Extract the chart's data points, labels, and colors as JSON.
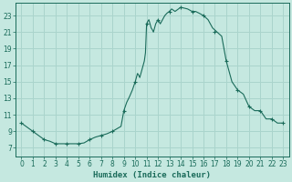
{
  "xlabel": "Humidex (Indice chaleur)",
  "bg_color": "#c5e8e0",
  "grid_color": "#aad4cc",
  "line_color": "#1a6b5a",
  "xlim": [
    -0.5,
    23.5
  ],
  "ylim": [
    6.0,
    24.5
  ],
  "yticks": [
    7,
    9,
    11,
    13,
    15,
    17,
    19,
    21,
    23
  ],
  "xticks": [
    0,
    1,
    2,
    3,
    4,
    5,
    6,
    7,
    8,
    9,
    10,
    11,
    12,
    13,
    14,
    15,
    16,
    17,
    18,
    19,
    20,
    21,
    22,
    23
  ],
  "x": [
    0,
    0.5,
    1,
    1.5,
    2,
    2.5,
    3,
    3.5,
    4,
    4.5,
    5,
    5.5,
    6,
    6.5,
    7,
    7.5,
    8,
    8.25,
    8.5,
    8.75,
    9,
    9.25,
    9.5,
    9.75,
    10,
    10.1,
    10.2,
    10.3,
    10.4,
    10.5,
    10.6,
    10.7,
    10.8,
    10.9,
    11.0,
    11.1,
    11.2,
    11.3,
    11.4,
    11.5,
    11.6,
    11.7,
    11.8,
    12.0,
    12.2,
    12.4,
    12.6,
    12.8,
    13.0,
    13.2,
    13.5,
    13.8,
    14.0,
    14.3,
    14.6,
    15.0,
    15.3,
    15.6,
    16.0,
    16.4,
    16.8,
    17.2,
    17.6,
    18.0,
    18.5,
    19.0,
    19.5,
    20.0,
    20.5,
    21.0,
    21.5,
    22.0,
    22.5,
    23.0
  ],
  "y": [
    10.0,
    9.5,
    9.0,
    8.5,
    8.0,
    7.8,
    7.5,
    7.5,
    7.5,
    7.5,
    7.5,
    7.6,
    8.0,
    8.3,
    8.5,
    8.7,
    9.0,
    9.2,
    9.4,
    9.6,
    11.5,
    12.5,
    13.2,
    14.0,
    15.0,
    15.5,
    16.0,
    15.8,
    15.5,
    16.0,
    16.5,
    17.0,
    17.5,
    18.5,
    22.0,
    22.3,
    22.5,
    22.0,
    21.5,
    21.3,
    21.0,
    21.5,
    22.0,
    22.5,
    22.0,
    22.5,
    23.0,
    23.3,
    23.5,
    23.8,
    23.5,
    23.8,
    24.0,
    23.9,
    23.8,
    23.5,
    23.5,
    23.3,
    23.0,
    22.5,
    21.5,
    21.0,
    20.5,
    17.5,
    15.0,
    14.0,
    13.5,
    12.0,
    11.5,
    11.5,
    10.5,
    10.5,
    10.0,
    10.0
  ],
  "marker_x": [
    0,
    1,
    2,
    3,
    4,
    5,
    6,
    7,
    8,
    9,
    10,
    11,
    12,
    13,
    14,
    15,
    16,
    17,
    18,
    19,
    20,
    21,
    22,
    23
  ],
  "marker_y": [
    10.0,
    9.0,
    8.0,
    7.5,
    7.5,
    7.5,
    8.0,
    8.5,
    9.0,
    11.5,
    15.0,
    22.0,
    22.5,
    23.5,
    24.0,
    23.5,
    23.0,
    21.0,
    17.5,
    14.0,
    12.0,
    11.5,
    10.5,
    10.0
  ]
}
